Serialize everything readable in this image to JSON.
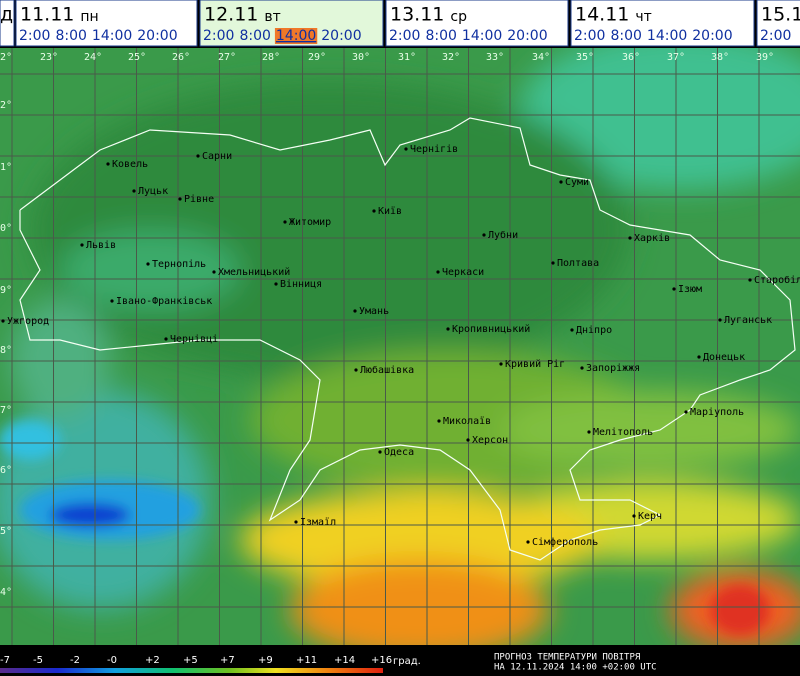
{
  "header": {
    "prev_stub": "д",
    "selected_day": 1,
    "selected_time": 2,
    "days": [
      {
        "date": "11.11",
        "weekday": "пн",
        "times": [
          "2:00",
          "8:00",
          "14:00",
          "20:00"
        ]
      },
      {
        "date": "12.11",
        "weekday": "вт",
        "times": [
          "2:00",
          "8:00",
          "14:00",
          "20:00"
        ]
      },
      {
        "date": "13.11",
        "weekday": "ср",
        "times": [
          "2:00",
          "8:00",
          "14:00",
          "20:00"
        ]
      },
      {
        "date": "14.11",
        "weekday": "чт",
        "times": [
          "2:00",
          "8:00",
          "14:00",
          "20:00"
        ]
      },
      {
        "date": "15.1",
        "times": [
          "2:00"
        ]
      }
    ]
  },
  "map": {
    "longitudes": [
      "2°",
      "23°",
      "24°",
      "25°",
      "26°",
      "27°",
      "28°",
      "29°",
      "30°",
      "31°",
      "32°",
      "33°",
      "34°",
      "35°",
      "36°",
      "37°",
      "38°",
      "39°"
    ],
    "latitudes": [
      "2°",
      "1°",
      "0°",
      "9°",
      "8°",
      "7°",
      "6°",
      "5°",
      "4°"
    ],
    "cities": [
      "Ковель",
      "Сарни",
      "Луцьк",
      "Рівне",
      "Чернігів",
      "Суми",
      "Київ",
      "Житомир",
      "Львів",
      "Лубни",
      "Харків",
      "Тернопіль",
      "Хмельницький",
      "Вінниця",
      "Полтава",
      "Черкаси",
      "Старобільськ",
      "Ізюм",
      "Івано-Франківськ",
      "Ужгород",
      "Умань",
      "Кропивницький",
      "Дніпро",
      "Луганськ",
      "Чернівці",
      "Донецьк",
      "Любашівка",
      "Кривий Ріг",
      "Запоріжжя",
      "Маріуполь",
      "Миколаїв",
      "Мелітополь",
      "Херсон",
      "Одеса",
      "Керч",
      "Ізмаїл",
      "Сімферополь"
    ]
  },
  "legend": {
    "ticks": [
      "-7",
      "-5",
      "-2",
      "-0",
      "+2",
      "+5",
      "+7",
      "+9",
      "+11",
      "+14",
      "+16"
    ],
    "unit": "град."
  },
  "footer": {
    "title": "ПРОГНОЗ ТЕМПЕРАТУРИ ПОВІТРЯ",
    "time": "НА 12.11.2024 14:00 +02:00 UTC"
  }
}
